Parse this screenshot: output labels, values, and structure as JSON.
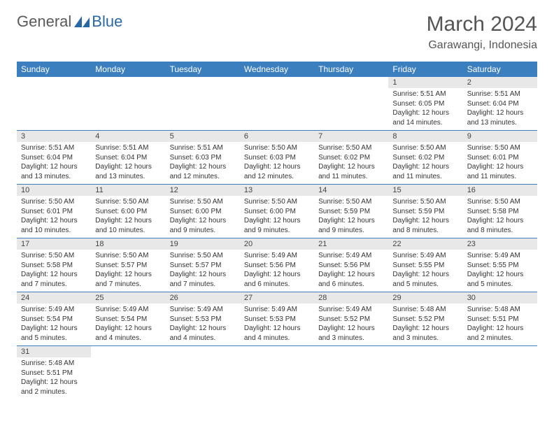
{
  "logo": {
    "text1": "General",
    "text2": "Blue",
    "icon_color": "#2968a8"
  },
  "title": "March 2024",
  "location": "Garawangi, Indonesia",
  "header_bg": "#3b7fbf",
  "daynum_bg": "#e8e8e8",
  "border_color": "#3b7fbf",
  "weekdays": [
    "Sunday",
    "Monday",
    "Tuesday",
    "Wednesday",
    "Thursday",
    "Friday",
    "Saturday"
  ],
  "weeks": [
    [
      {
        "n": "",
        "l1": "",
        "l2": "",
        "l3": "",
        "l4": "",
        "empty": true
      },
      {
        "n": "",
        "l1": "",
        "l2": "",
        "l3": "",
        "l4": "",
        "empty": true
      },
      {
        "n": "",
        "l1": "",
        "l2": "",
        "l3": "",
        "l4": "",
        "empty": true
      },
      {
        "n": "",
        "l1": "",
        "l2": "",
        "l3": "",
        "l4": "",
        "empty": true
      },
      {
        "n": "",
        "l1": "",
        "l2": "",
        "l3": "",
        "l4": "",
        "empty": true
      },
      {
        "n": "1",
        "l1": "Sunrise: 5:51 AM",
        "l2": "Sunset: 6:05 PM",
        "l3": "Daylight: 12 hours",
        "l4": "and 14 minutes."
      },
      {
        "n": "2",
        "l1": "Sunrise: 5:51 AM",
        "l2": "Sunset: 6:04 PM",
        "l3": "Daylight: 12 hours",
        "l4": "and 13 minutes."
      }
    ],
    [
      {
        "n": "3",
        "l1": "Sunrise: 5:51 AM",
        "l2": "Sunset: 6:04 PM",
        "l3": "Daylight: 12 hours",
        "l4": "and 13 minutes."
      },
      {
        "n": "4",
        "l1": "Sunrise: 5:51 AM",
        "l2": "Sunset: 6:04 PM",
        "l3": "Daylight: 12 hours",
        "l4": "and 13 minutes."
      },
      {
        "n": "5",
        "l1": "Sunrise: 5:51 AM",
        "l2": "Sunset: 6:03 PM",
        "l3": "Daylight: 12 hours",
        "l4": "and 12 minutes."
      },
      {
        "n": "6",
        "l1": "Sunrise: 5:50 AM",
        "l2": "Sunset: 6:03 PM",
        "l3": "Daylight: 12 hours",
        "l4": "and 12 minutes."
      },
      {
        "n": "7",
        "l1": "Sunrise: 5:50 AM",
        "l2": "Sunset: 6:02 PM",
        "l3": "Daylight: 12 hours",
        "l4": "and 11 minutes."
      },
      {
        "n": "8",
        "l1": "Sunrise: 5:50 AM",
        "l2": "Sunset: 6:02 PM",
        "l3": "Daylight: 12 hours",
        "l4": "and 11 minutes."
      },
      {
        "n": "9",
        "l1": "Sunrise: 5:50 AM",
        "l2": "Sunset: 6:01 PM",
        "l3": "Daylight: 12 hours",
        "l4": "and 11 minutes."
      }
    ],
    [
      {
        "n": "10",
        "l1": "Sunrise: 5:50 AM",
        "l2": "Sunset: 6:01 PM",
        "l3": "Daylight: 12 hours",
        "l4": "and 10 minutes."
      },
      {
        "n": "11",
        "l1": "Sunrise: 5:50 AM",
        "l2": "Sunset: 6:00 PM",
        "l3": "Daylight: 12 hours",
        "l4": "and 10 minutes."
      },
      {
        "n": "12",
        "l1": "Sunrise: 5:50 AM",
        "l2": "Sunset: 6:00 PM",
        "l3": "Daylight: 12 hours",
        "l4": "and 9 minutes."
      },
      {
        "n": "13",
        "l1": "Sunrise: 5:50 AM",
        "l2": "Sunset: 6:00 PM",
        "l3": "Daylight: 12 hours",
        "l4": "and 9 minutes."
      },
      {
        "n": "14",
        "l1": "Sunrise: 5:50 AM",
        "l2": "Sunset: 5:59 PM",
        "l3": "Daylight: 12 hours",
        "l4": "and 9 minutes."
      },
      {
        "n": "15",
        "l1": "Sunrise: 5:50 AM",
        "l2": "Sunset: 5:59 PM",
        "l3": "Daylight: 12 hours",
        "l4": "and 8 minutes."
      },
      {
        "n": "16",
        "l1": "Sunrise: 5:50 AM",
        "l2": "Sunset: 5:58 PM",
        "l3": "Daylight: 12 hours",
        "l4": "and 8 minutes."
      }
    ],
    [
      {
        "n": "17",
        "l1": "Sunrise: 5:50 AM",
        "l2": "Sunset: 5:58 PM",
        "l3": "Daylight: 12 hours",
        "l4": "and 7 minutes."
      },
      {
        "n": "18",
        "l1": "Sunrise: 5:50 AM",
        "l2": "Sunset: 5:57 PM",
        "l3": "Daylight: 12 hours",
        "l4": "and 7 minutes."
      },
      {
        "n": "19",
        "l1": "Sunrise: 5:50 AM",
        "l2": "Sunset: 5:57 PM",
        "l3": "Daylight: 12 hours",
        "l4": "and 7 minutes."
      },
      {
        "n": "20",
        "l1": "Sunrise: 5:49 AM",
        "l2": "Sunset: 5:56 PM",
        "l3": "Daylight: 12 hours",
        "l4": "and 6 minutes."
      },
      {
        "n": "21",
        "l1": "Sunrise: 5:49 AM",
        "l2": "Sunset: 5:56 PM",
        "l3": "Daylight: 12 hours",
        "l4": "and 6 minutes."
      },
      {
        "n": "22",
        "l1": "Sunrise: 5:49 AM",
        "l2": "Sunset: 5:55 PM",
        "l3": "Daylight: 12 hours",
        "l4": "and 5 minutes."
      },
      {
        "n": "23",
        "l1": "Sunrise: 5:49 AM",
        "l2": "Sunset: 5:55 PM",
        "l3": "Daylight: 12 hours",
        "l4": "and 5 minutes."
      }
    ],
    [
      {
        "n": "24",
        "l1": "Sunrise: 5:49 AM",
        "l2": "Sunset: 5:54 PM",
        "l3": "Daylight: 12 hours",
        "l4": "and 5 minutes."
      },
      {
        "n": "25",
        "l1": "Sunrise: 5:49 AM",
        "l2": "Sunset: 5:54 PM",
        "l3": "Daylight: 12 hours",
        "l4": "and 4 minutes."
      },
      {
        "n": "26",
        "l1": "Sunrise: 5:49 AM",
        "l2": "Sunset: 5:53 PM",
        "l3": "Daylight: 12 hours",
        "l4": "and 4 minutes."
      },
      {
        "n": "27",
        "l1": "Sunrise: 5:49 AM",
        "l2": "Sunset: 5:53 PM",
        "l3": "Daylight: 12 hours",
        "l4": "and 4 minutes."
      },
      {
        "n": "28",
        "l1": "Sunrise: 5:49 AM",
        "l2": "Sunset: 5:52 PM",
        "l3": "Daylight: 12 hours",
        "l4": "and 3 minutes."
      },
      {
        "n": "29",
        "l1": "Sunrise: 5:48 AM",
        "l2": "Sunset: 5:52 PM",
        "l3": "Daylight: 12 hours",
        "l4": "and 3 minutes."
      },
      {
        "n": "30",
        "l1": "Sunrise: 5:48 AM",
        "l2": "Sunset: 5:51 PM",
        "l3": "Daylight: 12 hours",
        "l4": "and 2 minutes."
      }
    ],
    [
      {
        "n": "31",
        "l1": "Sunrise: 5:48 AM",
        "l2": "Sunset: 5:51 PM",
        "l3": "Daylight: 12 hours",
        "l4": "and 2 minutes."
      },
      {
        "n": "",
        "l1": "",
        "l2": "",
        "l3": "",
        "l4": "",
        "empty": true
      },
      {
        "n": "",
        "l1": "",
        "l2": "",
        "l3": "",
        "l4": "",
        "empty": true
      },
      {
        "n": "",
        "l1": "",
        "l2": "",
        "l3": "",
        "l4": "",
        "empty": true
      },
      {
        "n": "",
        "l1": "",
        "l2": "",
        "l3": "",
        "l4": "",
        "empty": true
      },
      {
        "n": "",
        "l1": "",
        "l2": "",
        "l3": "",
        "l4": "",
        "empty": true
      },
      {
        "n": "",
        "l1": "",
        "l2": "",
        "l3": "",
        "l4": "",
        "empty": true
      }
    ]
  ]
}
